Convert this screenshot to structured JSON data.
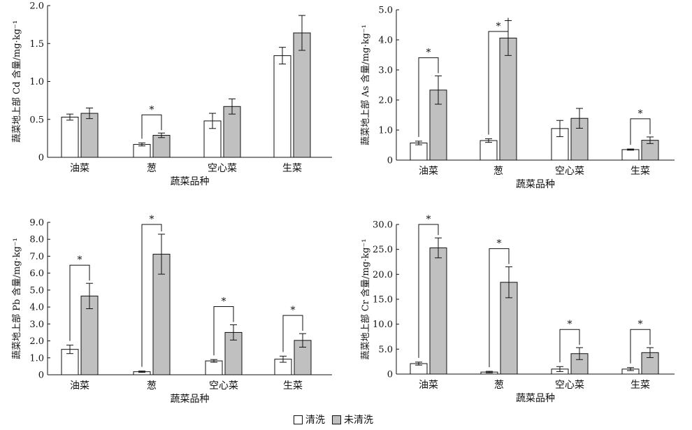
{
  "legend": [
    {
      "label": "清洗",
      "color": "#ffffff"
    },
    {
      "label": "未清洗",
      "color": "#c0c0c0"
    }
  ],
  "colors": {
    "washed": "#ffffff",
    "unwashed": "#c0c0c0",
    "axis": "#111111"
  },
  "chart_data": [
    {
      "type": "bar",
      "categories": [
        "油菜",
        "葱",
        "空心菜",
        "生菜"
      ],
      "xlabel": "蔬菜品种",
      "ylabel": "蔬菜地上部 Cd 含量/mg·kg⁻¹",
      "ylim": [
        0,
        2.0
      ],
      "yticks": [
        "0",
        "0.5",
        "1.0",
        "1.5",
        "2.0"
      ],
      "series": [
        {
          "name": "清洗",
          "values": [
            0.53,
            0.17,
            0.48,
            1.34
          ],
          "errors": [
            0.04,
            0.02,
            0.1,
            0.11
          ]
        },
        {
          "name": "未清洗",
          "values": [
            0.58,
            0.29,
            0.67,
            1.64
          ],
          "errors": [
            0.07,
            0.03,
            0.1,
            0.23
          ]
        }
      ],
      "significance": [
        {
          "category": 1,
          "label": "*"
        }
      ]
    },
    {
      "type": "bar",
      "categories": [
        "油菜",
        "葱",
        "空心菜",
        "生菜"
      ],
      "xlabel": "蔬菜品种",
      "ylabel": "蔬菜地上部 As 含量/mg·kg⁻¹",
      "ylim": [
        0,
        5.0
      ],
      "yticks": [
        "0",
        "1.0",
        "2.0",
        "3.0",
        "4.0",
        "5.0"
      ],
      "series": [
        {
          "name": "清洗",
          "values": [
            0.57,
            0.65,
            1.05,
            0.35
          ],
          "errors": [
            0.06,
            0.06,
            0.27,
            0.02
          ]
        },
        {
          "name": "未清洗",
          "values": [
            2.33,
            4.06,
            1.39,
            0.66
          ],
          "errors": [
            0.47,
            0.58,
            0.33,
            0.11
          ]
        }
      ],
      "significance": [
        {
          "category": 0,
          "label": "*"
        },
        {
          "category": 1,
          "label": "*"
        },
        {
          "category": 3,
          "label": "*"
        }
      ]
    },
    {
      "type": "bar",
      "categories": [
        "油菜",
        "葱",
        "空心菜",
        "生菜"
      ],
      "xlabel": "蔬菜品种",
      "ylabel": "蔬菜地上部 Pb 含量/mg·kg⁻¹",
      "ylim": [
        0,
        9.0
      ],
      "yticks": [
        "0",
        "1.0",
        "2.0",
        "3.0",
        "4.0",
        "5.0",
        "6.0",
        "7.0",
        "8.0",
        "9.0"
      ],
      "series": [
        {
          "name": "清洗",
          "values": [
            1.5,
            0.18,
            0.82,
            0.92
          ],
          "errors": [
            0.25,
            0.04,
            0.08,
            0.18
          ]
        },
        {
          "name": "未清洗",
          "values": [
            4.65,
            7.12,
            2.5,
            2.03
          ],
          "errors": [
            0.75,
            1.18,
            0.45,
            0.4
          ]
        }
      ],
      "significance": [
        {
          "category": 0,
          "label": "*"
        },
        {
          "category": 1,
          "label": "*"
        },
        {
          "category": 2,
          "label": "*"
        },
        {
          "category": 3,
          "label": "*"
        }
      ]
    },
    {
      "type": "bar",
      "categories": [
        "油菜",
        "葱",
        "空心菜",
        "生菜"
      ],
      "xlabel": "蔬菜品种",
      "ylabel": "蔬菜地上部 Cr 含量/mg·kg⁻¹",
      "ylim": [
        0,
        30.0
      ],
      "yticks": [
        "0",
        "5.0",
        "10.0",
        "15.0",
        "20.0",
        "25.0",
        "30.0"
      ],
      "series": [
        {
          "name": "清洗",
          "values": [
            2.1,
            0.4,
            1.0,
            1.0
          ],
          "errors": [
            0.3,
            0.15,
            0.5,
            0.3
          ]
        },
        {
          "name": "未清洗",
          "values": [
            25.3,
            18.4,
            4.1,
            4.3
          ],
          "errors": [
            2.0,
            3.1,
            1.2,
            1.0
          ]
        }
      ],
      "significance": [
        {
          "category": 0,
          "label": "*"
        },
        {
          "category": 1,
          "label": "*"
        },
        {
          "category": 2,
          "label": "*"
        },
        {
          "category": 3,
          "label": "*"
        }
      ]
    }
  ]
}
